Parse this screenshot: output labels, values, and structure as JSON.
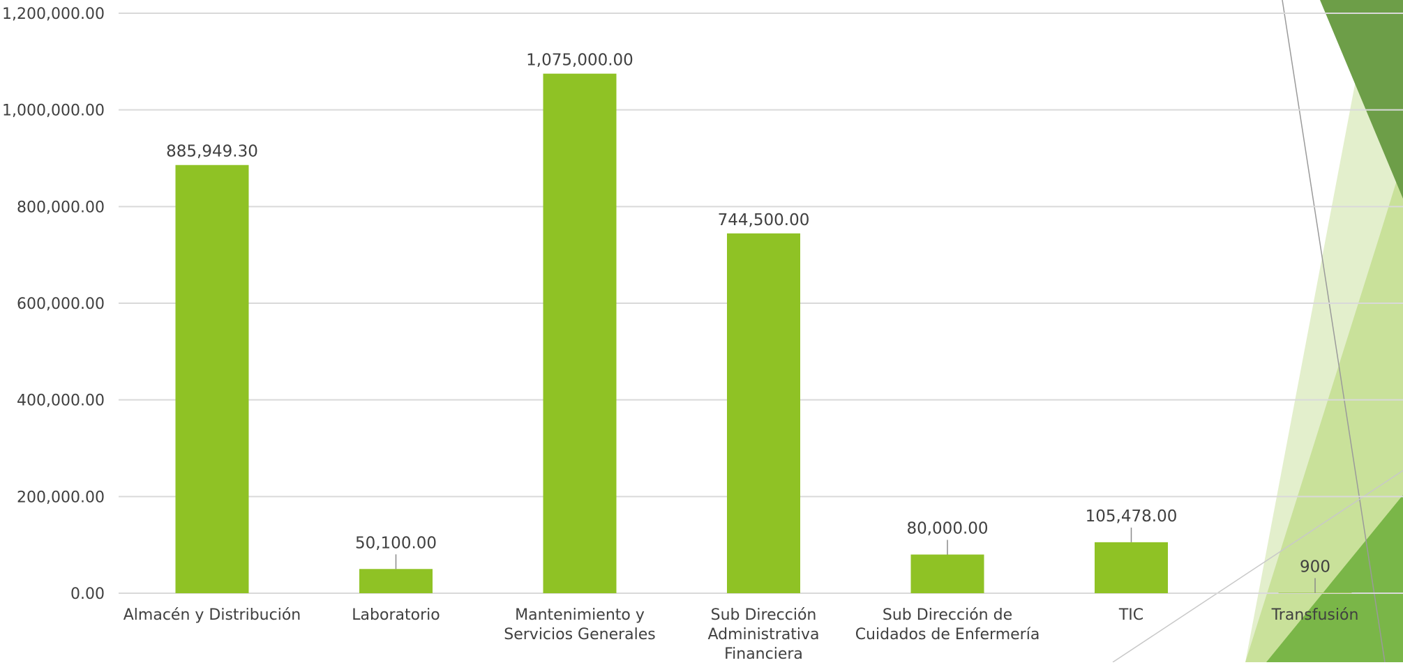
{
  "chart_data": {
    "type": "bar",
    "title": "",
    "xlabel": "",
    "ylabel": "",
    "ylim": [
      0,
      1200000
    ],
    "y_ticks": [
      0,
      200000,
      400000,
      600000,
      800000,
      1000000,
      1200000
    ],
    "y_tick_labels": [
      "0.00",
      "200,000.00",
      "400,000.00",
      "600,000.00",
      "800,000.00",
      "1,000,000.00",
      "1,200,000.00"
    ],
    "grid": true,
    "legend": "none",
    "categories": [
      [
        "Almacén y Distribución"
      ],
      [
        "Laboratorio"
      ],
      [
        "Mantenimiento y",
        "Servicios Generales"
      ],
      [
        "Sub Dirección",
        "Administrativa",
        "Financiera"
      ],
      [
        "Sub Dirección de",
        "Cuidados de Enfermería"
      ],
      [
        "TIC"
      ],
      [
        "Transfusión"
      ]
    ],
    "values": [
      885949.3,
      50100.0,
      1075000.0,
      744500.0,
      80000.0,
      105478.0,
      900
    ],
    "data_labels": [
      "885,949.30",
      "50,100.00",
      "1,075,000.00",
      "744,500.00",
      "80,000.00",
      "105,478.00",
      "900"
    ],
    "bar_color": "#8fc225"
  },
  "decor": {
    "dark_green": "#6d9e48",
    "mid_green": "#7ab648",
    "light_green": "#c9e19a",
    "pale_green": "#e3efcc"
  }
}
